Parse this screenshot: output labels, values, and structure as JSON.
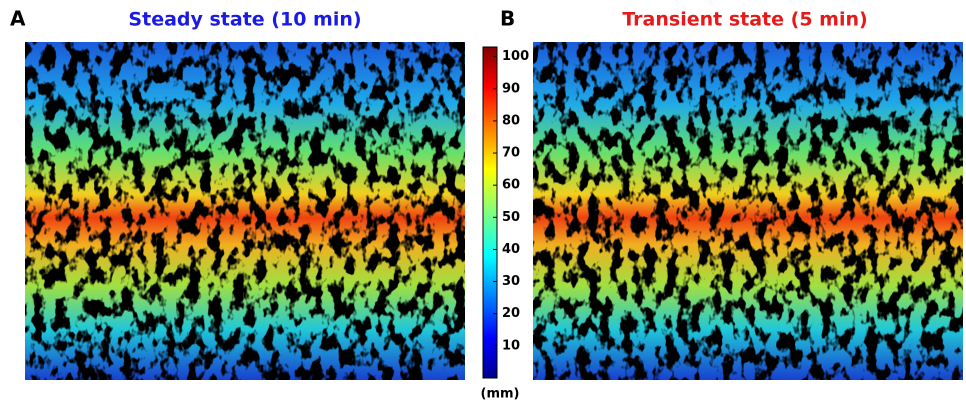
{
  "panels": [
    {
      "letter": "A",
      "title": "Steady state (10 min)",
      "title_color": "#1a1ae6"
    },
    {
      "letter": "B",
      "title": "Transient state (5 min)",
      "title_color": "#e61a1a"
    }
  ],
  "colorbar": {
    "lim": [
      0,
      103
    ],
    "ticks": [
      10,
      20,
      30,
      40,
      50,
      60,
      70,
      80,
      90,
      100
    ],
    "unit": "(mm)"
  }
}
